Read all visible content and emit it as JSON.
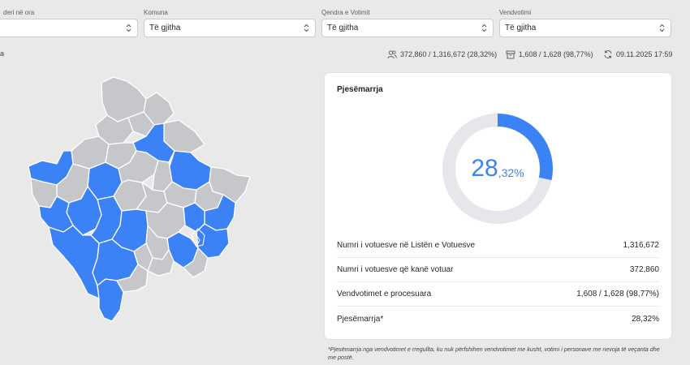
{
  "filters": [
    {
      "label": "deri në ora",
      "value": ""
    },
    {
      "label": "Komuna",
      "value": "Të gjitha"
    },
    {
      "label": "Qendra e Votimit",
      "value": "Të gjitha"
    },
    {
      "label": "Vendvotimi",
      "value": "Të gjitha"
    }
  ],
  "stats": {
    "left_edge": "a",
    "voters": "372,860 / 1,316,672 (28,32%)",
    "stations": "1,608 / 1,628 (98,77%)",
    "updated": "09.11.2025 17:59"
  },
  "card": {
    "title": "Pjesëmarrja",
    "turnout_int": "28",
    "turnout_dec": ",32%",
    "turnout_fraction": 0.2832,
    "rows": [
      {
        "label": "Numri i votuesve në Listën e Votuesve",
        "value": "1,316,672"
      },
      {
        "label": "Numri i votuesve që kanë votuar",
        "value": "372,860"
      },
      {
        "label": "Vendvotimet e procesuara",
        "value": "1,608 / 1,628 (98,77%)"
      },
      {
        "label": "Pjesëmarrja*",
        "value": "28,32%"
      }
    ]
  },
  "footnote": "*Pjesëmarrja nga vendvotimet e rregullta, ku nuk përfshihen vendvotimet me kusht, votimi i personave me nevoja të veçanta dhe me postë.",
  "colors": {
    "accent": "#3b82f6",
    "gray_region": "#c5c7cb",
    "track": "#e6e7ea"
  }
}
